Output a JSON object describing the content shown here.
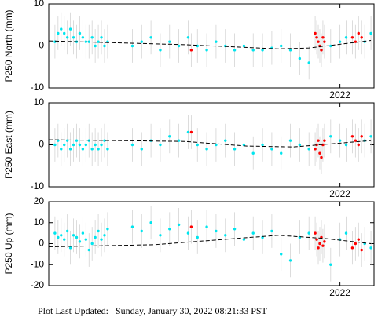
{
  "chart_data": [
    {
      "type": "scatter",
      "ylabel": "P250 North (mm)",
      "xlim": [
        2021.06,
        2022.11
      ],
      "xticks": [
        {
          "value": 2022,
          "label": "2022"
        }
      ],
      "ylim": [
        -10,
        10
      ],
      "yticks": [
        -10,
        0,
        10
      ],
      "series": [
        {
          "color": "#00e5ee",
          "error_color": "#d3d3d3",
          "error": 4,
          "x": [
            2021.08,
            2021.09,
            2021.1,
            2021.11,
            2021.12,
            2021.13,
            2021.14,
            2021.15,
            2021.16,
            2021.17,
            2021.18,
            2021.19,
            2021.2,
            2021.21,
            2021.22,
            2021.23,
            2021.24,
            2021.25,
            2021.33,
            2021.36,
            2021.39,
            2021.42,
            2021.45,
            2021.48,
            2021.51,
            2021.54,
            2021.57,
            2021.6,
            2021.63,
            2021.66,
            2021.69,
            2021.72,
            2021.75,
            2021.78,
            2021.81,
            2021.84,
            2021.87,
            2021.9,
            2021.97,
            2022.0,
            2022.02,
            2022.08,
            2022.1
          ],
          "values": [
            1,
            3,
            4,
            3,
            2,
            4,
            2,
            1,
            3,
            2,
            1,
            1,
            2,
            0,
            1,
            2,
            0,
            1,
            0,
            1,
            2,
            -1,
            1,
            0,
            2,
            0,
            -1,
            1,
            0,
            -1,
            0,
            -1,
            -1,
            -0.5,
            0,
            -1,
            -3,
            -4,
            0,
            1,
            2,
            1,
            3
          ]
        },
        {
          "color": "#ff0000",
          "error_color": "#d3d3d3",
          "error": 4,
          "x": [
            2021.52,
            2021.92,
            2021.925,
            2021.93,
            2021.935,
            2021.94,
            2021.945,
            2021.95,
            2022.04,
            2022.05,
            2022.06,
            2022.07
          ],
          "values": [
            -1,
            3,
            2,
            1,
            0,
            -1,
            2,
            1,
            2,
            1,
            3,
            2
          ]
        },
        {
          "color": "#000000",
          "dashed": true,
          "x": [
            2021.06,
            2021.5,
            2021.8,
            2021.9,
            2022.1
          ],
          "values": [
            1.2,
            0.3,
            -0.7,
            -0.5,
            1.3
          ]
        }
      ]
    },
    {
      "type": "scatter",
      "ylabel": "P250 East (mm)",
      "xlim": [
        2021.06,
        2022.11
      ],
      "xticks": [
        {
          "value": 2022,
          "label": "2022"
        }
      ],
      "ylim": [
        -10,
        10
      ],
      "yticks": [
        -10,
        0,
        10
      ],
      "series": [
        {
          "color": "#00e5ee",
          "error_color": "#d3d3d3",
          "error": 4,
          "x": [
            2021.08,
            2021.09,
            2021.1,
            2021.11,
            2021.12,
            2021.13,
            2021.14,
            2021.15,
            2021.16,
            2021.17,
            2021.18,
            2021.19,
            2021.2,
            2021.21,
            2021.22,
            2021.23,
            2021.24,
            2021.25,
            2021.33,
            2021.36,
            2021.39,
            2021.42,
            2021.45,
            2021.48,
            2021.51,
            2021.54,
            2021.57,
            2021.6,
            2021.63,
            2021.66,
            2021.69,
            2021.72,
            2021.75,
            2021.78,
            2021.81,
            2021.84,
            2021.87,
            2021.9,
            2021.97,
            2022.0,
            2022.02,
            2022.08,
            2022.1
          ],
          "values": [
            0,
            1,
            -1,
            0,
            1,
            -1,
            0,
            1,
            0,
            -1,
            0,
            1,
            -1,
            0,
            -1,
            0,
            1,
            -1,
            0,
            -1,
            1,
            0,
            2,
            1,
            3,
            0,
            -1,
            0,
            1,
            -1,
            0,
            -2,
            0,
            -1,
            -2,
            1,
            0,
            -1,
            2,
            1,
            0,
            1,
            2
          ]
        },
        {
          "color": "#ff0000",
          "error_color": "#d3d3d3",
          "error": 4,
          "x": [
            2021.52,
            2021.92,
            2021.925,
            2021.93,
            2021.935,
            2021.94,
            2021.945,
            2021.95,
            2022.04,
            2022.05,
            2022.06,
            2022.07
          ],
          "values": [
            3,
            -1,
            0,
            1,
            -2,
            -3,
            0,
            1,
            2,
            1,
            0,
            2
          ]
        },
        {
          "color": "#000000",
          "dashed": true,
          "x": [
            2021.06,
            2021.5,
            2021.7,
            2021.85,
            2022.1
          ],
          "values": [
            1.2,
            0.8,
            -0.3,
            -0.5,
            1.0
          ]
        }
      ]
    },
    {
      "type": "scatter",
      "ylabel": "P250 Up (mm)",
      "xlim": [
        2021.06,
        2022.11
      ],
      "xticks": [
        {
          "value": 2022,
          "label": "2022"
        }
      ],
      "ylim": [
        -20,
        20
      ],
      "yticks": [
        -20,
        -10,
        0,
        10,
        20
      ],
      "series": [
        {
          "color": "#00e5ee",
          "error_color": "#d3d3d3",
          "error": 8,
          "x": [
            2021.08,
            2021.09,
            2021.1,
            2021.11,
            2021.12,
            2021.13,
            2021.14,
            2021.15,
            2021.16,
            2021.17,
            2021.18,
            2021.19,
            2021.2,
            2021.21,
            2021.22,
            2021.23,
            2021.24,
            2021.25,
            2021.33,
            2021.36,
            2021.39,
            2021.42,
            2021.45,
            2021.48,
            2021.51,
            2021.54,
            2021.57,
            2021.6,
            2021.63,
            2021.66,
            2021.69,
            2021.72,
            2021.75,
            2021.78,
            2021.81,
            2021.84,
            2021.87,
            2021.9,
            2021.97,
            2022.0,
            2022.02,
            2022.08,
            2022.1
          ],
          "values": [
            5,
            3,
            4,
            2,
            6,
            -2,
            4,
            3,
            1,
            5,
            2,
            -3,
            0,
            3,
            6,
            2,
            4,
            7,
            8,
            6,
            10,
            4,
            7,
            9,
            5,
            3,
            8,
            6,
            4,
            7,
            2,
            5,
            3,
            6,
            -5,
            -8,
            3,
            5,
            -10,
            2,
            5,
            0,
            -2
          ]
        },
        {
          "color": "#ff0000",
          "error_color": "#d3d3d3",
          "error": 8,
          "x": [
            2021.52,
            2021.92,
            2021.925,
            2021.93,
            2021.935,
            2021.94,
            2021.945,
            2021.95,
            2022.04,
            2022.05,
            2022.06,
            2022.07
          ],
          "values": [
            8,
            5,
            2,
            -2,
            0,
            3,
            -1,
            1,
            -2,
            0,
            2,
            -3
          ]
        },
        {
          "color": "#000000",
          "dashed": true,
          "x": [
            2021.06,
            2021.4,
            2021.8,
            2021.95,
            2022.1
          ],
          "values": [
            -1.5,
            -0.5,
            4,
            2.5,
            0
          ]
        }
      ]
    }
  ],
  "footer": "Plot Last Updated:   Sunday, January 30, 2022 08:21:33 PST"
}
